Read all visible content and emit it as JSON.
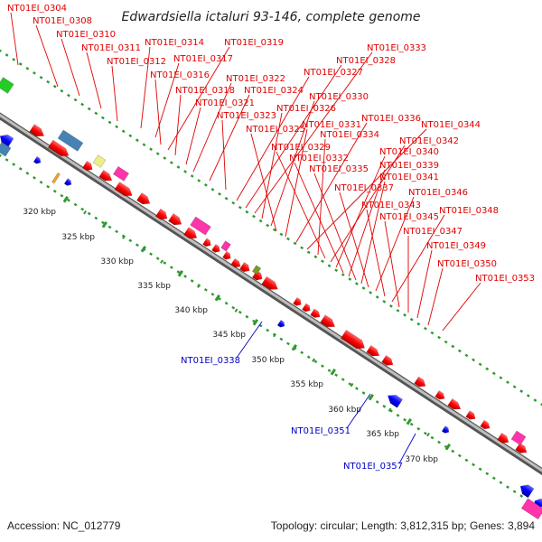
{
  "title": "Edwardsiella ictaluri 93-146, complete genome",
  "footer": {
    "accession": "Accession: NC_012779",
    "stats": "Topology: circular; Length: 3,812,315 bp; Genes: 3,894"
  },
  "scale_labels": [
    "320 kbp",
    "325 kbp",
    "330 kbp",
    "335 kbp",
    "340 kbp",
    "345 kbp",
    "350 kbp",
    "355 kbp",
    "360 kbp",
    "365 kbp",
    "370 kbp"
  ],
  "red_labels": [
    "NT01EI_0304",
    "NT01EI_0308",
    "NT01EI_0310",
    "NT01EI_0311",
    "NT01EI_0312",
    "NT01EI_0314",
    "NT01EI_0317",
    "NT01EI_0316",
    "NT01EI_0319",
    "NT01EI_0318",
    "NT01EI_0321",
    "NT01EI_0322",
    "NT01EI_0324",
    "NT01EI_0323",
    "NT01EI_0327",
    "NT01EI_0328",
    "NT01EI_0333",
    "NT01EI_0326",
    "NT01EI_0330",
    "NT01EI_0325",
    "NT01EI_0331",
    "NT01EI_0336",
    "NT01EI_0344",
    "NT01EI_0334",
    "NT01EI_0329",
    "NT01EI_0342",
    "NT01EI_0340",
    "NT01EI_0332",
    "NT01EI_0339",
    "NT01EI_0335",
    "NT01EI_0341",
    "NT01EI_0337",
    "NT01EI_0346",
    "NT01EI_0343",
    "NT01EI_0348",
    "NT01EI_0345",
    "NT01EI_0347",
    "NT01EI_0349",
    "NT01EI_0350",
    "NT01EI_0353"
  ],
  "blue_labels": [
    "NT01EI_0338",
    "NT01EI_0351",
    "NT01EI_0357"
  ],
  "colors": {
    "forward_gene": "#ff0000",
    "reverse_gene": "#0000ff",
    "backbone": "#888888",
    "gc_dots": "#2e9a2e",
    "rna_magenta": "#ff33aa",
    "steelblue": "#4682b4",
    "khaki": "#eeee88",
    "olive": "#7a9a2a",
    "orange": "#f0a030",
    "green": "#22cc22"
  }
}
